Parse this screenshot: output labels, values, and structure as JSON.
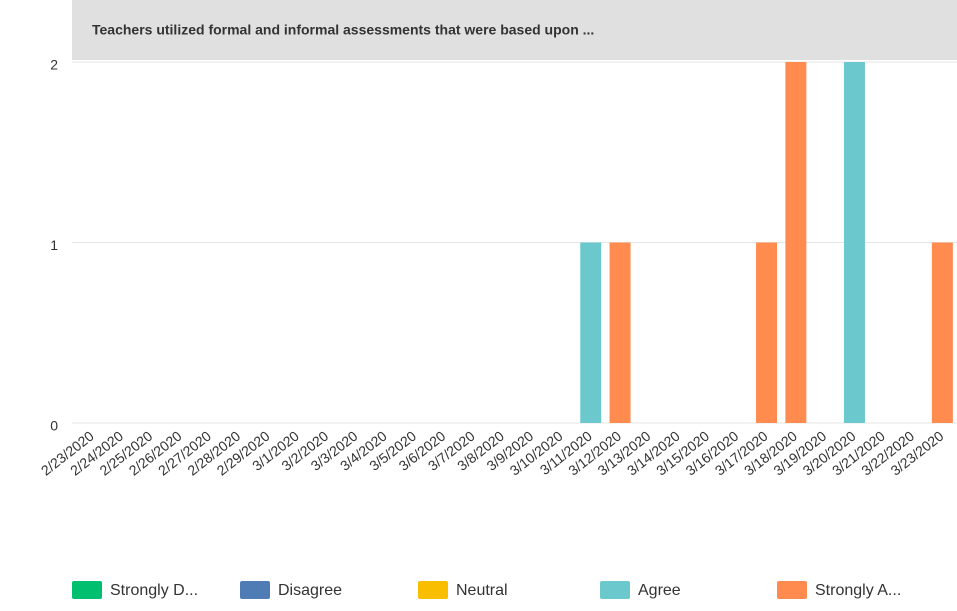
{
  "chart_data": {
    "type": "bar",
    "stacked": true,
    "title": "Teachers utilized formal and informal assessments that were based upon ...",
    "categories": [
      "2/23/2020",
      "2/24/2020",
      "2/25/2020",
      "2/26/2020",
      "2/27/2020",
      "2/28/2020",
      "2/29/2020",
      "3/1/2020",
      "3/2/2020",
      "3/3/2020",
      "3/4/2020",
      "3/5/2020",
      "3/6/2020",
      "3/7/2020",
      "3/8/2020",
      "3/9/2020",
      "3/10/2020",
      "3/11/2020",
      "3/12/2020",
      "3/13/2020",
      "3/14/2020",
      "3/15/2020",
      "3/16/2020",
      "3/17/2020",
      "3/18/2020",
      "3/19/2020",
      "3/20/2020",
      "3/21/2020",
      "3/22/2020",
      "3/23/2020"
    ],
    "series": [
      {
        "name": "Strongly D...",
        "color": "#00bf6f",
        "values": [
          0,
          0,
          0,
          0,
          0,
          0,
          0,
          0,
          0,
          0,
          0,
          0,
          0,
          0,
          0,
          0,
          0,
          0,
          0,
          0,
          0,
          0,
          0,
          0,
          0,
          0,
          0,
          0,
          0,
          0
        ]
      },
      {
        "name": "Disagree",
        "color": "#507cb6",
        "values": [
          0,
          0,
          0,
          0,
          0,
          0,
          0,
          0,
          0,
          0,
          0,
          0,
          0,
          0,
          0,
          0,
          0,
          0,
          0,
          0,
          0,
          0,
          0,
          0,
          0,
          0,
          0,
          0,
          0,
          0
        ]
      },
      {
        "name": "Neutral",
        "color": "#f9be00",
        "values": [
          0,
          0,
          0,
          0,
          0,
          0,
          0,
          0,
          0,
          0,
          0,
          0,
          0,
          0,
          0,
          0,
          0,
          0,
          0,
          0,
          0,
          0,
          0,
          0,
          0,
          0,
          0,
          0,
          0,
          0
        ]
      },
      {
        "name": "Agree",
        "color": "#6bc8cd",
        "values": [
          0,
          0,
          0,
          0,
          0,
          0,
          0,
          0,
          0,
          0,
          0,
          0,
          0,
          0,
          0,
          0,
          0,
          1,
          0,
          0,
          0,
          0,
          0,
          0,
          0,
          0,
          2,
          0,
          0,
          0
        ]
      },
      {
        "name": "Strongly A...",
        "color": "#ff8b4f",
        "values": [
          0,
          0,
          0,
          0,
          0,
          0,
          0,
          0,
          0,
          0,
          0,
          0,
          0,
          0,
          0,
          0,
          0,
          0,
          1,
          0,
          0,
          0,
          0,
          1,
          2,
          0,
          0,
          0,
          0,
          1
        ]
      }
    ],
    "ylim": [
      0,
      2
    ],
    "yticks": [
      0,
      1,
      2
    ],
    "grid": true
  }
}
